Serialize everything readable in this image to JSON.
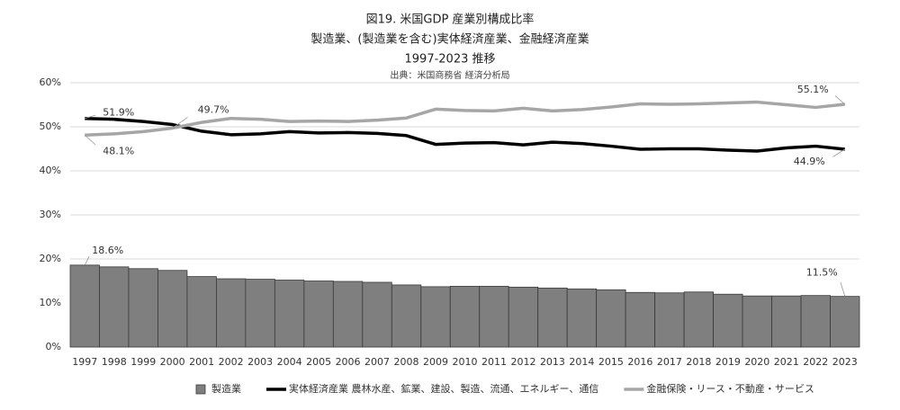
{
  "chart_data": {
    "type": "combo",
    "title": "図19. 米国GDP 産業別構成比率",
    "subtitle": "製造業、(製造業を含む)実体経済産業、金融経済産業",
    "period": "1997-2023 推移",
    "source": "出典：米国商務省 経済分析局",
    "categories": [
      "1997",
      "1998",
      "1999",
      "2000",
      "2001",
      "2002",
      "2003",
      "2004",
      "2005",
      "2006",
      "2007",
      "2008",
      "2009",
      "2010",
      "2011",
      "2012",
      "2013",
      "2014",
      "2015",
      "2016",
      "2017",
      "2018",
      "2019",
      "2020",
      "2021",
      "2022",
      "2023"
    ],
    "ylim": [
      0,
      60
    ],
    "yticks": [
      {
        "value": 0,
        "label": "0%"
      },
      {
        "value": 10,
        "label": "10%"
      },
      {
        "value": 20,
        "label": "20%"
      },
      {
        "value": 30,
        "label": "30%"
      },
      {
        "value": 40,
        "label": "40%"
      },
      {
        "value": 50,
        "label": "50%"
      },
      {
        "value": 60,
        "label": "60%"
      }
    ],
    "grid": true,
    "legend": "bottom",
    "series": [
      {
        "name": "製造業",
        "type": "bar",
        "color": "#7f7f7f",
        "values": [
          18.6,
          18.2,
          17.8,
          17.4,
          16.0,
          15.5,
          15.4,
          15.2,
          15.0,
          14.9,
          14.7,
          14.1,
          13.7,
          13.8,
          13.8,
          13.6,
          13.4,
          13.2,
          13.0,
          12.4,
          12.3,
          12.5,
          12.0,
          11.6,
          11.6,
          11.7,
          11.5
        ],
        "value_labels": [
          "18.6%",
          null,
          null,
          null,
          null,
          null,
          null,
          null,
          null,
          null,
          null,
          null,
          null,
          null,
          null,
          null,
          null,
          null,
          null,
          null,
          null,
          null,
          null,
          null,
          null,
          null,
          "11.5%"
        ]
      },
      {
        "name": "実体経済産業 農林水産、鉱業、建設、製造、流通、エネルギー、通信",
        "type": "line",
        "color": "#000000",
        "values": [
          51.9,
          51.7,
          51.2,
          50.5,
          49.0,
          48.2,
          48.4,
          48.9,
          48.6,
          48.7,
          48.5,
          48.0,
          46.0,
          46.3,
          46.4,
          45.9,
          46.5,
          46.2,
          45.6,
          44.9,
          45.0,
          45.0,
          44.7,
          44.5,
          45.2,
          45.6,
          44.9
        ],
        "value_labels": [
          "51.9%",
          null,
          null,
          null,
          null,
          null,
          null,
          null,
          null,
          null,
          null,
          null,
          null,
          null,
          null,
          null,
          null,
          null,
          null,
          null,
          null,
          null,
          null,
          null,
          null,
          null,
          "44.9%"
        ]
      },
      {
        "name": "金融保険・リース・不動産・サービス",
        "type": "line",
        "color": "#a6a6a6",
        "values": [
          48.1,
          48.4,
          48.9,
          49.7,
          51.0,
          51.9,
          51.7,
          51.2,
          51.3,
          51.2,
          51.5,
          52.0,
          54.0,
          53.7,
          53.6,
          54.2,
          53.6,
          53.9,
          54.5,
          55.2,
          55.1,
          55.2,
          55.4,
          55.6,
          55.0,
          54.4,
          55.1
        ],
        "value_labels": [
          "48.1%",
          null,
          null,
          "49.7%",
          null,
          null,
          null,
          null,
          null,
          null,
          null,
          null,
          null,
          null,
          null,
          null,
          null,
          null,
          null,
          null,
          null,
          null,
          null,
          null,
          null,
          null,
          "55.1%"
        ]
      }
    ]
  }
}
